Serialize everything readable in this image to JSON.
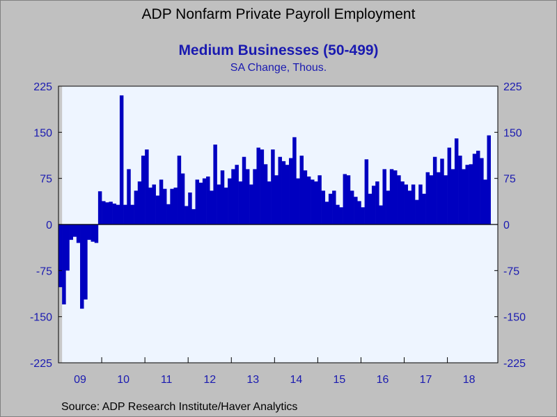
{
  "chart_data": {
    "type": "bar",
    "title": "ADP Nonfarm Private Payroll Employment",
    "subtitle": "Medium Businesses (50-499)",
    "units": "SA Change, Thous.",
    "source": "Source:  ADP Research Institute/Haver Analytics",
    "ylim": [
      -225,
      225
    ],
    "yticks": [
      "225",
      "150",
      "75",
      "0",
      "-75",
      "-150",
      "-225"
    ],
    "ytick_values": [
      225,
      150,
      75,
      0,
      -75,
      -150,
      -225
    ],
    "xticks": [
      "09",
      "10",
      "11",
      "12",
      "13",
      "14",
      "15",
      "16",
      "17",
      "18"
    ],
    "start": "2009-01",
    "end": "2019-02",
    "grid": false,
    "bar_color": "#0000c0",
    "plot_background": "#eef5ff",
    "series": [
      {
        "values": [
          -102,
          -130,
          -75,
          -25,
          -20,
          -30,
          -137,
          -122,
          -25,
          -28,
          -30,
          54,
          38,
          36,
          37,
          34,
          32,
          210,
          32,
          90,
          32,
          55,
          70,
          112,
          122,
          60,
          65,
          47,
          73,
          58,
          33,
          58,
          60,
          112,
          83,
          30,
          52,
          25,
          73,
          68,
          75,
          78,
          55,
          130,
          65,
          88,
          60,
          75,
          90,
          97,
          70,
          110,
          90,
          65,
          90,
          125,
          122,
          98,
          70,
          122,
          80,
          110,
          103,
          97,
          108,
          142,
          75,
          112,
          88,
          78,
          73,
          70,
          80,
          55,
          37,
          50,
          55,
          32,
          28,
          82,
          80,
          55,
          45,
          38,
          28,
          106,
          50,
          63,
          70,
          31,
          90,
          55,
          90,
          88,
          80,
          70,
          65,
          55,
          65,
          40,
          65,
          50,
          85,
          80,
          110,
          85,
          107,
          80,
          125,
          90,
          140,
          112,
          90,
          97,
          98,
          115,
          120,
          108,
          73,
          145
        ]
      }
    ]
  }
}
